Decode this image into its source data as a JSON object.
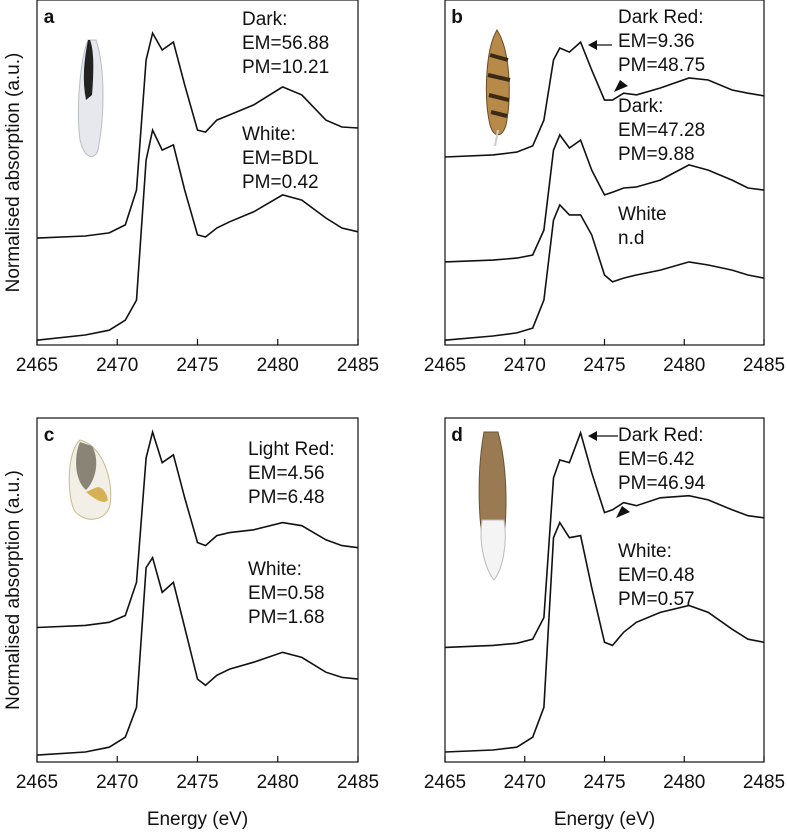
{
  "chart_data": [
    {
      "type": "line",
      "panel": "a",
      "ylabel": "Normalised absorption (a.u.)",
      "xlim": [
        2465,
        2485
      ],
      "ylim": [
        0,
        100
      ],
      "xticks": [
        2465,
        2470,
        2475,
        2480,
        2485
      ],
      "x": [
        2465,
        2468,
        2469.5,
        2470.5,
        2471.2,
        2471.8,
        2472.2,
        2472.8,
        2473.5,
        2474.2,
        2475,
        2475.5,
        2476.2,
        2477,
        2478.5,
        2480.3,
        2481.5,
        2483,
        2484,
        2485
      ],
      "series": [
        {
          "color": "#111111",
          "values": [
            31.0,
            31.6,
            32.5,
            34.8,
            44.9,
            82.6,
            90.4,
            85.5,
            87.8,
            75.4,
            62.3,
            61.7,
            65.2,
            66.7,
            69.6,
            74.8,
            72.5,
            65.2,
            63.2,
            62.9
          ]
        },
        {
          "color": "#111111",
          "values": [
            1.4,
            2.9,
            4.3,
            7.2,
            13.0,
            53.6,
            62.3,
            56.5,
            58.0,
            44.9,
            31.9,
            31.3,
            33.9,
            35.7,
            38.6,
            43.5,
            42.0,
            36.8,
            33.9,
            32.8
          ]
        }
      ],
      "annotations": [
        {
          "lines": [
            "Dark:",
            "EM=56.88",
            "PM=10.21"
          ]
        },
        {
          "lines": [
            "White:",
            "EM=BDL",
            "PM=0.42"
          ]
        }
      ]
    },
    {
      "type": "line",
      "panel": "b",
      "xlim": [
        2465,
        2485
      ],
      "ylim": [
        0,
        100
      ],
      "xticks": [
        2465,
        2470,
        2475,
        2480,
        2485
      ],
      "x": [
        2465,
        2468,
        2469.5,
        2470.5,
        2471.2,
        2471.8,
        2472.2,
        2472.8,
        2473.5,
        2474.2,
        2475,
        2475.5,
        2476.2,
        2477,
        2478.5,
        2480.3,
        2481.5,
        2483,
        2484,
        2485
      ],
      "series": [
        {
          "color": "#111111",
          "values": [
            54.5,
            55.1,
            55.9,
            57.7,
            65.2,
            82.6,
            86.1,
            84.9,
            87.8,
            79.7,
            71.0,
            71.0,
            73.0,
            72.5,
            74.5,
            77.4,
            76.8,
            73.9,
            73.0,
            72.2
          ]
        },
        {
          "color": "#111111",
          "values": [
            24.1,
            24.6,
            25.2,
            26.1,
            33.3,
            56.5,
            60.9,
            57.1,
            59.4,
            50.7,
            43.5,
            44.3,
            45.5,
            45.8,
            47.8,
            52.2,
            50.7,
            47.8,
            45.5,
            44.9
          ]
        },
        {
          "color": "#111111",
          "values": [
            1.4,
            2.6,
            3.5,
            4.9,
            13.0,
            36.2,
            40.6,
            37.7,
            37.7,
            31.9,
            20.3,
            18.3,
            19.4,
            20.3,
            21.7,
            24.1,
            23.2,
            21.7,
            20.3,
            19.4
          ]
        }
      ],
      "annotations": [
        {
          "lines": [
            "Dark Red:",
            "EM=9.36",
            "PM=48.75"
          ]
        },
        {
          "lines": [
            "Dark:",
            "EM=47.28",
            "PM=9.88"
          ]
        },
        {
          "lines": [
            "White",
            "n.d"
          ]
        }
      ]
    },
    {
      "type": "line",
      "panel": "c",
      "ylabel": "Normalised absorption (a.u.)",
      "xlabel": "Energy (eV)",
      "xlim": [
        2465,
        2485
      ],
      "ylim": [
        0,
        100
      ],
      "xticks": [
        2465,
        2470,
        2475,
        2480,
        2485
      ],
      "x": [
        2465,
        2468,
        2469.5,
        2470.5,
        2471.2,
        2471.8,
        2472.2,
        2472.8,
        2473.5,
        2474.2,
        2475,
        2475.5,
        2476.2,
        2477,
        2478.5,
        2480.3,
        2481.5,
        2483,
        2484,
        2485
      ],
      "series": [
        {
          "color": "#111111",
          "values": [
            39.1,
            39.7,
            40.6,
            42.6,
            52.2,
            88.4,
            95.9,
            87.0,
            89.3,
            76.8,
            63.8,
            62.9,
            65.8,
            66.7,
            67.5,
            69.6,
            68.7,
            64.6,
            62.9,
            62.3
          ]
        },
        {
          "color": "#111111",
          "values": [
            2.0,
            2.9,
            4.3,
            7.2,
            15.9,
            56.5,
            59.4,
            49.3,
            52.2,
            39.1,
            24.1,
            22.3,
            25.2,
            27.0,
            29.0,
            31.9,
            30.4,
            26.1,
            24.6,
            24.1
          ]
        }
      ],
      "annotations": [
        {
          "lines": [
            "Light Red:",
            "EM=4.56",
            "PM=6.48"
          ]
        },
        {
          "lines": [
            "White:",
            "EM=0.58",
            "PM=1.68"
          ]
        }
      ]
    },
    {
      "type": "line",
      "panel": "d",
      "xlabel": "Energy (eV)",
      "xlim": [
        2465,
        2485
      ],
      "ylim": [
        0,
        100
      ],
      "xticks": [
        2465,
        2470,
        2475,
        2480,
        2485
      ],
      "x": [
        2465,
        2468,
        2469.5,
        2470.5,
        2471.2,
        2471.8,
        2472.2,
        2472.8,
        2473.5,
        2474.2,
        2475,
        2475.5,
        2476.2,
        2477,
        2478.5,
        2480.3,
        2481.5,
        2483,
        2484,
        2485
      ],
      "series": [
        {
          "color": "#111111",
          "values": [
            33.3,
            33.9,
            34.5,
            35.7,
            42.0,
            82.6,
            87.8,
            87.0,
            95.7,
            84.1,
            72.5,
            73.3,
            75.4,
            74.5,
            76.8,
            77.4,
            76.2,
            73.3,
            71.6,
            71.0
          ]
        },
        {
          "color": "#111111",
          "values": [
            2.9,
            3.5,
            4.3,
            7.2,
            15.9,
            65.2,
            69.6,
            65.2,
            65.8,
            50.7,
            34.8,
            33.9,
            37.7,
            40.6,
            43.5,
            45.5,
            43.5,
            38.6,
            35.7,
            34.8
          ]
        }
      ],
      "annotations": [
        {
          "lines": [
            "Dark Red:",
            "EM=6.42",
            "PM=46.94"
          ]
        },
        {
          "lines": [
            "White:",
            "EM=0.48",
            "PM=0.57"
          ]
        }
      ]
    }
  ]
}
